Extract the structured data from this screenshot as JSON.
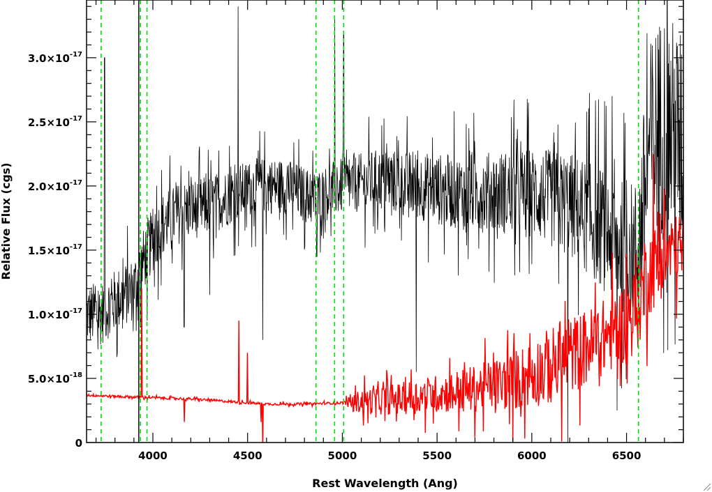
{
  "chart_data": {
    "type": "line",
    "title": "",
    "xlabel": "Rest Wavelength (Ang)",
    "ylabel": "Relative Flux (cgs)",
    "xlim": [
      3650,
      6800
    ],
    "ylim": [
      0,
      3.45e-17
    ],
    "x_ticks": [
      {
        "value": 4000,
        "label": "4000"
      },
      {
        "value": 4500,
        "label": "4500"
      },
      {
        "value": 5000,
        "label": "5000"
      },
      {
        "value": 5500,
        "label": "5500"
      },
      {
        "value": 6000,
        "label": "6000"
      },
      {
        "value": 6500,
        "label": "6500"
      }
    ],
    "y_ticks": [
      {
        "value": 0,
        "mantissa": "0",
        "exponent": ""
      },
      {
        "value": 5e-18,
        "mantissa": "5.0×10",
        "exponent": "-18"
      },
      {
        "value": 1e-17,
        "mantissa": "1.0×10",
        "exponent": "-17"
      },
      {
        "value": 1.5e-17,
        "mantissa": "1.5×10",
        "exponent": "-17"
      },
      {
        "value": 2e-17,
        "mantissa": "2.0×10",
        "exponent": "-17"
      },
      {
        "value": 2.5e-17,
        "mantissa": "2.5×10",
        "exponent": "-17"
      },
      {
        "value": 3e-17,
        "mantissa": "3.0×10",
        "exponent": "-17"
      }
    ],
    "grid": false,
    "series": [
      {
        "color": "#000000",
        "continuum": [
          [
            3650,
            1e-17
          ],
          [
            3720,
            1e-17
          ],
          [
            3800,
            1.1e-17
          ],
          [
            3900,
            1.2e-17
          ],
          [
            3970,
            1.5e-17
          ],
          [
            4050,
            1.7e-17
          ],
          [
            4150,
            1.8e-17
          ],
          [
            4300,
            1.85e-17
          ],
          [
            4450,
            1.95e-17
          ],
          [
            4550,
            2e-17
          ],
          [
            4700,
            2e-17
          ],
          [
            4850,
            1.9e-17
          ],
          [
            5000,
            2e-17
          ],
          [
            5200,
            2.05e-17
          ],
          [
            5400,
            2e-17
          ],
          [
            5600,
            1.95e-17
          ],
          [
            5800,
            1.95e-17
          ],
          [
            6000,
            1.95e-17
          ],
          [
            6200,
            1.85e-17
          ],
          [
            6350,
            1.7e-17
          ],
          [
            6500,
            1.5e-17
          ],
          [
            6560,
            1.5e-17
          ],
          [
            6620,
            2.3e-17
          ],
          [
            6700,
            2.5e-17
          ],
          [
            6800,
            2.3e-17
          ]
        ],
        "noise": [
          [
            3650,
            2.5e-18
          ],
          [
            4000,
            2.5e-18
          ],
          [
            4500,
            2.2e-18
          ],
          [
            5000,
            2.2e-18
          ],
          [
            5500,
            2.8e-18
          ],
          [
            6000,
            3.5e-18
          ],
          [
            6300,
            4.5e-18
          ],
          [
            6550,
            5.5e-18
          ],
          [
            6650,
            9e-18
          ],
          [
            6800,
            9e-18
          ]
        ],
        "features": [
          [
            3745,
            3e-17
          ],
          [
            3935,
            9e-18
          ],
          [
            3970,
            9.5e-18
          ],
          [
            4165,
            9e-18
          ],
          [
            4300,
            1.15e-17
          ],
          [
            4450,
            3.4e-17
          ],
          [
            4580,
            8e-18
          ],
          [
            4865,
            1.45e-17
          ],
          [
            4960,
            3.3e-17
          ],
          [
            5007,
            3.2e-17
          ],
          [
            5390,
            5.5e-18
          ],
          [
            6190,
            0.0
          ],
          [
            6450,
            2.5e-18
          ]
        ]
      },
      {
        "color": "#ff0000",
        "continuum": [
          [
            3650,
            3.7e-18
          ],
          [
            3800,
            3.6e-18
          ],
          [
            4000,
            3.5e-18
          ],
          [
            4200,
            3.4e-18
          ],
          [
            4400,
            3.2e-18
          ],
          [
            4600,
            3e-18
          ],
          [
            4800,
            3e-18
          ],
          [
            5000,
            3.1e-18
          ],
          [
            5100,
            3.2e-18
          ],
          [
            5300,
            3.4e-18
          ],
          [
            5500,
            3.8e-18
          ],
          [
            5700,
            4.2e-18
          ],
          [
            5900,
            4.8e-18
          ],
          [
            6100,
            6e-18
          ],
          [
            6300,
            7.5e-18
          ],
          [
            6450,
            8.8e-18
          ],
          [
            6560,
            1.05e-17
          ],
          [
            6600,
            1.3e-17
          ],
          [
            6700,
            1.45e-17
          ],
          [
            6800,
            1.55e-17
          ]
        ],
        "noise": [
          [
            3650,
            1e-19
          ],
          [
            5000,
            1e-19
          ],
          [
            5100,
            1e-18
          ],
          [
            5500,
            1.5e-18
          ],
          [
            5800,
            2e-18
          ],
          [
            6100,
            3e-18
          ],
          [
            6400,
            3e-18
          ],
          [
            6600,
            3.5e-18
          ],
          [
            6800,
            2.5e-18
          ]
        ],
        "features": [
          [
            3940,
            1.2e-17
          ],
          [
            4165,
            1.6e-18
          ],
          [
            4455,
            9.5e-18
          ],
          [
            4500,
            7e-18
          ],
          [
            4580,
            -5e-19
          ],
          [
            4570,
            1.6e-18
          ],
          [
            6640,
            2.25e-17
          ]
        ]
      }
    ],
    "vertical_lines": {
      "green_dashed": [
        3727,
        3934,
        3969,
        4861,
        4959,
        5007,
        6563
      ],
      "black_solid": [
        3933
      ]
    }
  }
}
